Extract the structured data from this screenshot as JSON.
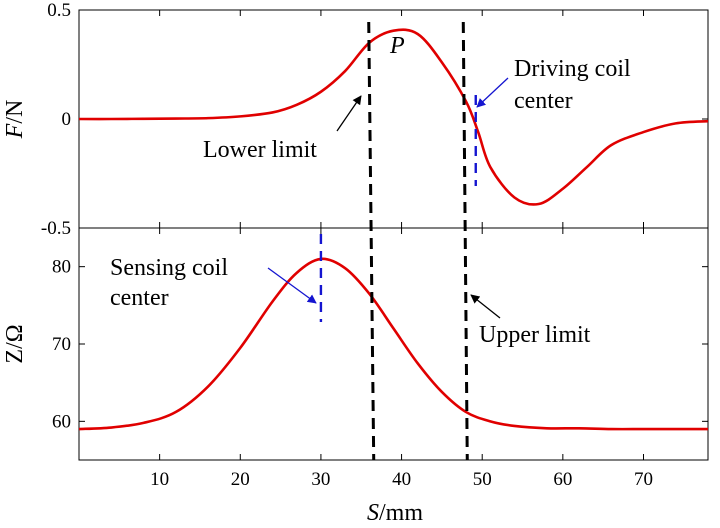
{
  "chart_data": [
    {
      "type": "line",
      "panel": "top",
      "ylabel_italic": "F",
      "ylabel_unit": "/N",
      "xlim": [
        0,
        78
      ],
      "ylim": [
        -0.5,
        0.5
      ],
      "yticks": [
        -0.5,
        0,
        0.5
      ],
      "ytick_labels": [
        "-0.5",
        "0",
        "0.5"
      ],
      "series": [
        {
          "name": "F",
          "color": "#e00000",
          "x": [
            0,
            4,
            8,
            12,
            16,
            20,
            24,
            27,
            30,
            33,
            36,
            39,
            42,
            45,
            48,
            49.5,
            51,
            54,
            57,
            60,
            63,
            66,
            70,
            74,
            78
          ],
          "y": [
            0,
            0,
            0.001,
            0.002,
            0.004,
            0.012,
            0.03,
            0.065,
            0.125,
            0.22,
            0.35,
            0.405,
            0.39,
            0.26,
            0.08,
            -0.06,
            -0.22,
            -0.36,
            -0.39,
            -0.32,
            -0.22,
            -0.12,
            -0.06,
            -0.02,
            -0.01
          ]
        }
      ],
      "point_label": "P",
      "annotations": [
        {
          "text": "Lower limit",
          "x": 36.3
        },
        {
          "text": "Driving coil",
          "text2": "center",
          "x": 49
        }
      ]
    },
    {
      "type": "line",
      "panel": "bottom",
      "ylabel": "Z/Ω",
      "xlabel_italic": "S",
      "xlabel_unit": "/mm",
      "xlim": [
        0,
        78
      ],
      "ylim": [
        55,
        85
      ],
      "yticks": [
        60,
        70,
        80
      ],
      "ytick_labels": [
        "60",
        "70",
        "80"
      ],
      "xticks": [
        10,
        20,
        30,
        40,
        50,
        60,
        70
      ],
      "xtick_labels": [
        "10",
        "20",
        "30",
        "40",
        "50",
        "60",
        "70"
      ],
      "series": [
        {
          "name": "Z",
          "color": "#e00000",
          "x": [
            0,
            4,
            8,
            12,
            16,
            20,
            24,
            27,
            30,
            33,
            36,
            39,
            42,
            45,
            48,
            51,
            54,
            58,
            62,
            66,
            70,
            74,
            78
          ],
          "y": [
            59,
            59.2,
            59.8,
            61.2,
            64.5,
            69.5,
            75.5,
            79.2,
            81,
            79.8,
            76.5,
            72,
            67.5,
            63.8,
            61.2,
            60,
            59.4,
            59.1,
            59.1,
            59,
            59,
            59,
            59
          ]
        }
      ],
      "annotations": [
        {
          "text": "Sensing coil",
          "text2": "center",
          "x": 30
        },
        {
          "text": "Upper limit",
          "x": 47.9
        }
      ]
    }
  ],
  "limits": {
    "lower": 36.3,
    "upper": 47.9
  },
  "coil_centers": {
    "driving": 49.2,
    "sensing": 30
  }
}
